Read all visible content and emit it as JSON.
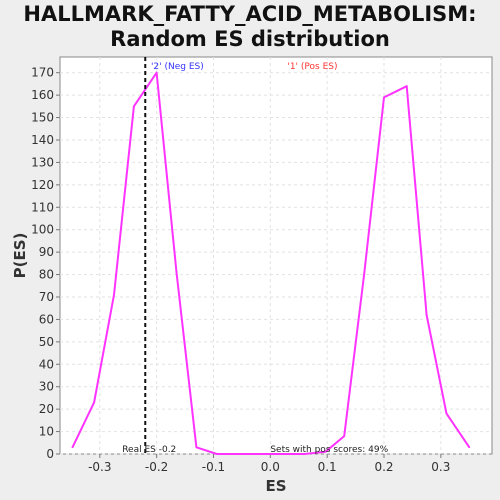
{
  "title_line1": "HALLMARK_FATTY_ACID_METABOLISM:",
  "title_line2": "Random ES distribution",
  "colors": {
    "series": "#ff33ff",
    "neg_legend": "#3333ff",
    "pos_legend": "#ff3333",
    "real_es_line": "#111111"
  },
  "chart_data": {
    "type": "line",
    "xlabel": "ES",
    "ylabel": "P(ES)",
    "xlim": [
      -0.37,
      0.39
    ],
    "ylim": [
      0,
      177
    ],
    "x_ticks": [
      -0.3,
      -0.2,
      -0.1,
      0.0,
      0.1,
      0.2,
      0.3
    ],
    "x_tick_labels": [
      "-0.3",
      "-0.2",
      "-0.1",
      "0.0",
      "0.1",
      "0.2",
      "0.3"
    ],
    "y_ticks": [
      0,
      10,
      20,
      30,
      40,
      50,
      60,
      70,
      80,
      90,
      100,
      110,
      120,
      130,
      140,
      150,
      160,
      170
    ],
    "grid": true,
    "legend": [
      {
        "label": "'2' (Neg ES)",
        "color": "#3333ff"
      },
      {
        "label": "'1' (Pos ES)",
        "color": "#ff3333"
      }
    ],
    "series": [
      {
        "x": [
          -0.348,
          -0.31,
          -0.275,
          -0.24,
          -0.2,
          -0.165,
          -0.13,
          -0.094,
          -0.06,
          -0.02,
          0.02,
          0.06,
          0.097,
          0.13,
          0.165,
          0.2,
          0.24,
          0.275,
          0.31,
          0.35
        ],
        "y": [
          3,
          23,
          71,
          155,
          170,
          81,
          3,
          0,
          0,
          0,
          0,
          0,
          1,
          8,
          80,
          159,
          164,
          62,
          18,
          3
        ]
      }
    ],
    "real_es": -0.22,
    "annotations": {
      "real_es_label": "Real ES -0.2",
      "pos_scores_label": "Sets with pos scores: 49%"
    }
  }
}
